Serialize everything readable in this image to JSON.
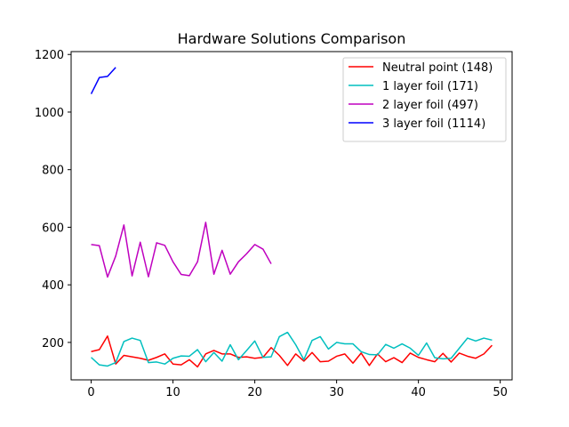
{
  "chart_data": {
    "type": "line",
    "title": "Hardware Solutions Comparison",
    "xlabel": "",
    "ylabel": "",
    "xlim": [
      -2.45,
      51.45
    ],
    "ylim": [
      70,
      1210
    ],
    "xticks": [
      0,
      10,
      20,
      30,
      40,
      50
    ],
    "yticks": [
      200,
      400,
      600,
      800,
      1000,
      1200
    ],
    "grid": false,
    "legend_position": "top-right",
    "series": [
      {
        "name": "Neutral point (148)",
        "color": "#ff0000",
        "x": [
          0,
          1,
          2,
          3,
          4,
          5,
          6,
          7,
          8,
          9,
          10,
          11,
          12,
          13,
          14,
          15,
          16,
          17,
          18,
          19,
          20,
          21,
          22,
          23,
          24,
          25,
          26,
          27,
          28,
          29,
          30,
          31,
          32,
          33,
          34,
          35,
          36,
          37,
          38,
          39,
          40,
          41,
          42,
          43,
          44,
          45,
          46,
          47,
          48,
          49
        ],
        "values": [
          168,
          175,
          222,
          125,
          155,
          150,
          145,
          138,
          148,
          160,
          125,
          122,
          140,
          115,
          160,
          172,
          160,
          160,
          148,
          150,
          145,
          148,
          182,
          155,
          120,
          160,
          135,
          165,
          133,
          135,
          152,
          160,
          128,
          163,
          120,
          160,
          133,
          147,
          130,
          163,
          148,
          140,
          133,
          162,
          132,
          163,
          152,
          145,
          160,
          190
        ]
      },
      {
        "name": "1 layer foil (171)",
        "color": "#00bfbf",
        "x": [
          0,
          1,
          2,
          3,
          4,
          5,
          6,
          7,
          8,
          9,
          10,
          11,
          12,
          13,
          14,
          15,
          16,
          17,
          18,
          19,
          20,
          21,
          22,
          23,
          24,
          25,
          26,
          27,
          28,
          29,
          30,
          31,
          32,
          33,
          34,
          35,
          36,
          37,
          38,
          39,
          40,
          41,
          42,
          43,
          44,
          45,
          46,
          47,
          48,
          49
        ],
        "values": [
          148,
          122,
          118,
          130,
          203,
          215,
          207,
          130,
          132,
          125,
          145,
          153,
          152,
          175,
          133,
          165,
          135,
          192,
          140,
          172,
          205,
          148,
          150,
          220,
          235,
          192,
          140,
          207,
          220,
          177,
          200,
          195,
          195,
          168,
          158,
          157,
          193,
          180,
          195,
          180,
          155,
          198,
          147,
          143,
          145,
          180,
          215,
          205,
          215,
          208
        ]
      },
      {
        "name": "2 layer foil (497)",
        "color": "#bf00bf",
        "x": [
          0,
          1,
          2,
          3,
          4,
          5,
          6,
          7,
          8,
          9,
          10,
          11,
          12,
          13,
          14,
          15,
          16,
          17,
          18,
          19,
          20,
          21,
          22
        ],
        "values": [
          540,
          536,
          427,
          500,
          608,
          431,
          548,
          428,
          546,
          537,
          480,
          436,
          432,
          480,
          617,
          437,
          520,
          437,
          480,
          508,
          540,
          524,
          473
        ]
      },
      {
        "name": "3 layer foil (1114)",
        "color": "#0000ff",
        "x": [
          0,
          1,
          2,
          3
        ],
        "values": [
          1063,
          1120,
          1124,
          1155
        ]
      }
    ]
  }
}
